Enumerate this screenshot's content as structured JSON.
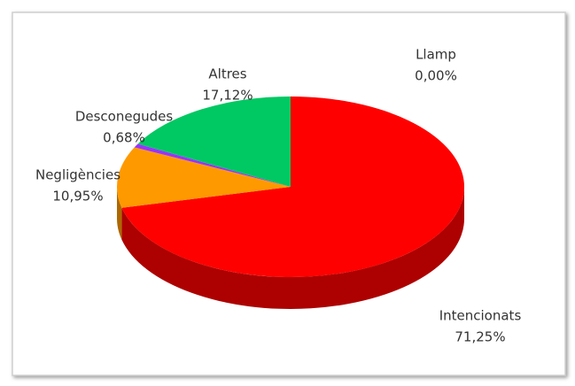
{
  "chart_data": {
    "type": "pie3d",
    "categories": [
      "Llamp",
      "Intencionats",
      "Negligències",
      "Desconegudes",
      "Altres"
    ],
    "values": [
      0.0,
      71.25,
      10.95,
      0.68,
      17.12
    ],
    "value_labels": [
      "0,00%",
      "71,25%",
      "10,95%",
      "0,68%",
      "17,12%"
    ],
    "colors": [
      "#4472c4",
      "#ff0000",
      "#ff9900",
      "#9933ff",
      "#00c862"
    ]
  }
}
